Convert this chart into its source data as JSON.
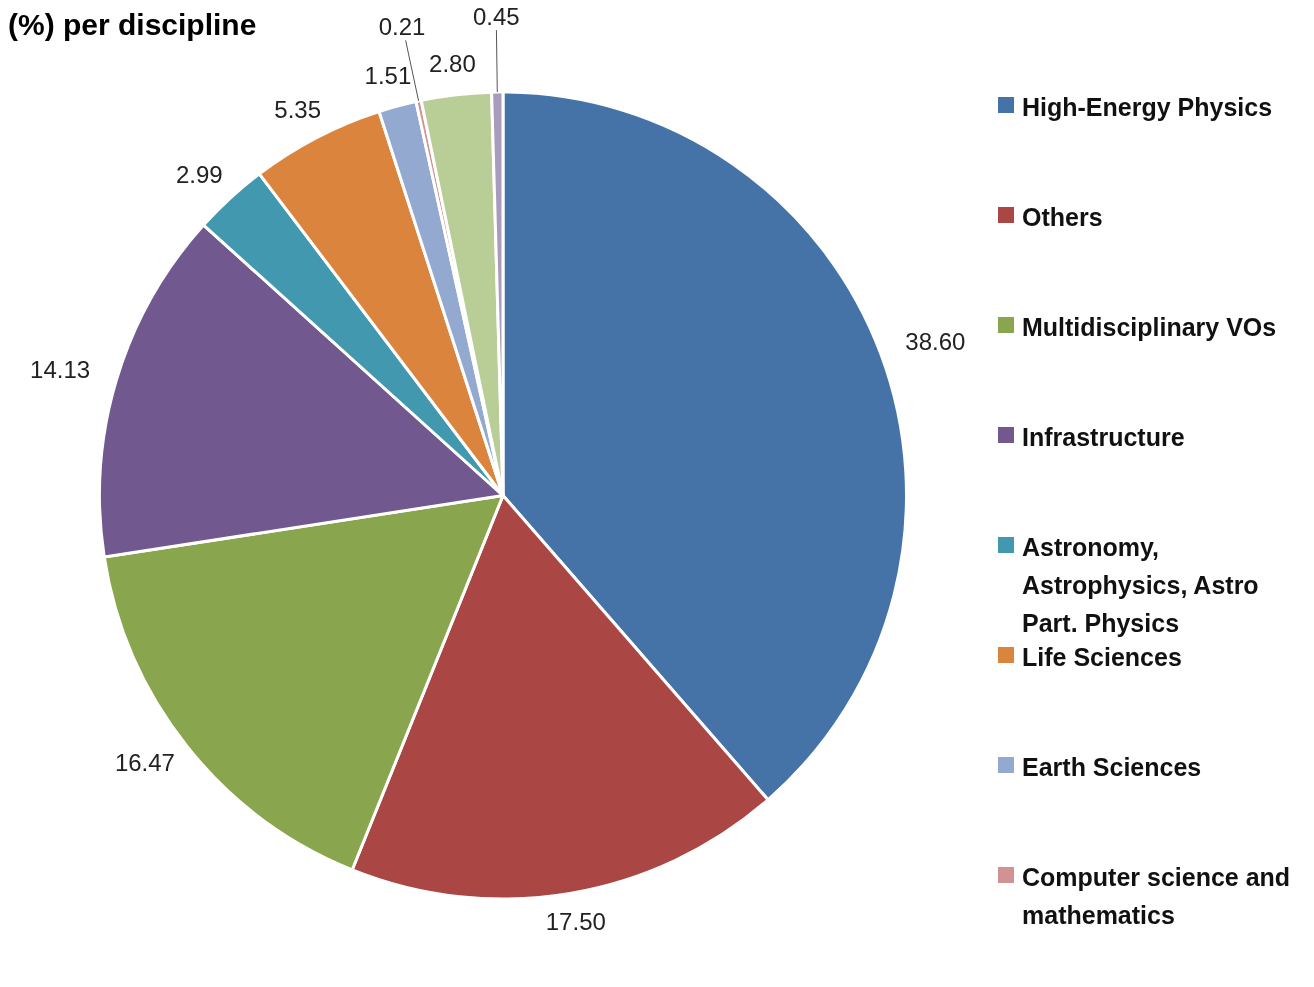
{
  "chart_data": {
    "type": "pie",
    "title": "(%) per discipline",
    "categories": [
      "High-Energy Physics",
      "Others",
      "Multidisciplinary VOs",
      "Infrastructure",
      "Astronomy, Astrophysics, Astro Part. Physics",
      "Life Sciences",
      "Earth Sciences",
      "Computer science and mathematics",
      null,
      null
    ],
    "values": [
      38.6,
      17.5,
      16.47,
      14.13,
      2.99,
      5.35,
      1.51,
      0.21,
      2.8,
      0.45
    ],
    "colors": [
      "#4673a7",
      "#aa4744",
      "#89a54e",
      "#71588f",
      "#4198af",
      "#db843d",
      "#93a9cf",
      "#d19392",
      "#b9cd96",
      "#a99bbd"
    ],
    "value_labels": [
      "38.60",
      "17.50",
      "16.47",
      "14.13",
      "2.99",
      "5.35",
      "1.51",
      "0.21",
      "2.80",
      "0.45"
    ],
    "legend": "right"
  }
}
